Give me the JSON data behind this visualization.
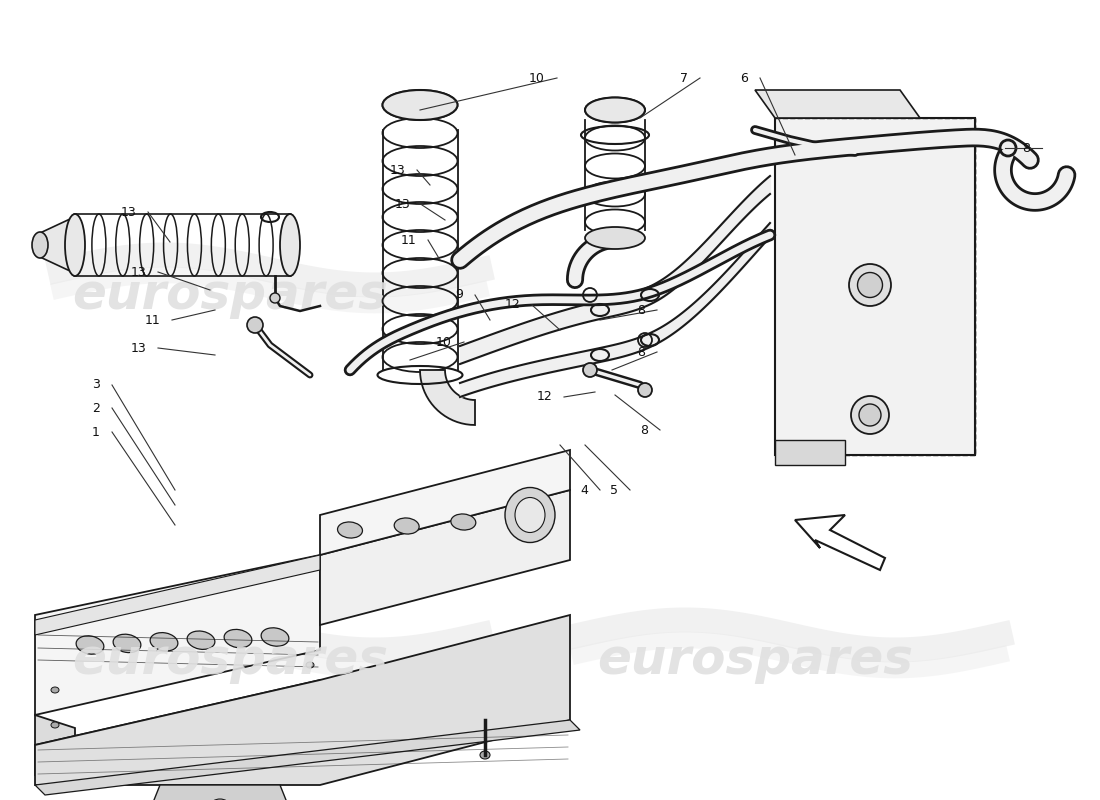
{
  "background_color": "#ffffff",
  "watermark_text": "eurospares",
  "watermark_color_light": "#e8e8e8",
  "line_color": "#1a1a1a",
  "fill_white": "#ffffff",
  "fill_light": "#f0f0f0",
  "fill_mid": "#d8d8d8",
  "annotations": [
    [
      "1",
      108,
      430
    ],
    [
      "2",
      108,
      405
    ],
    [
      "3",
      108,
      380
    ],
    [
      "4",
      592,
      490
    ],
    [
      "5",
      622,
      490
    ],
    [
      "6",
      752,
      75
    ],
    [
      "7",
      690,
      75
    ],
    [
      "8",
      1020,
      148
    ],
    [
      "8",
      648,
      310
    ],
    [
      "8",
      648,
      355
    ],
    [
      "8",
      648,
      430
    ],
    [
      "9",
      467,
      295
    ],
    [
      "10",
      548,
      75
    ],
    [
      "10",
      455,
      340
    ],
    [
      "11",
      162,
      320
    ],
    [
      "11",
      418,
      238
    ],
    [
      "12",
      523,
      305
    ],
    [
      "12",
      555,
      395
    ],
    [
      "13",
      138,
      210
    ],
    [
      "13",
      148,
      272
    ],
    [
      "13",
      148,
      348
    ],
    [
      "13",
      407,
      168
    ],
    [
      "13",
      413,
      202
    ]
  ]
}
